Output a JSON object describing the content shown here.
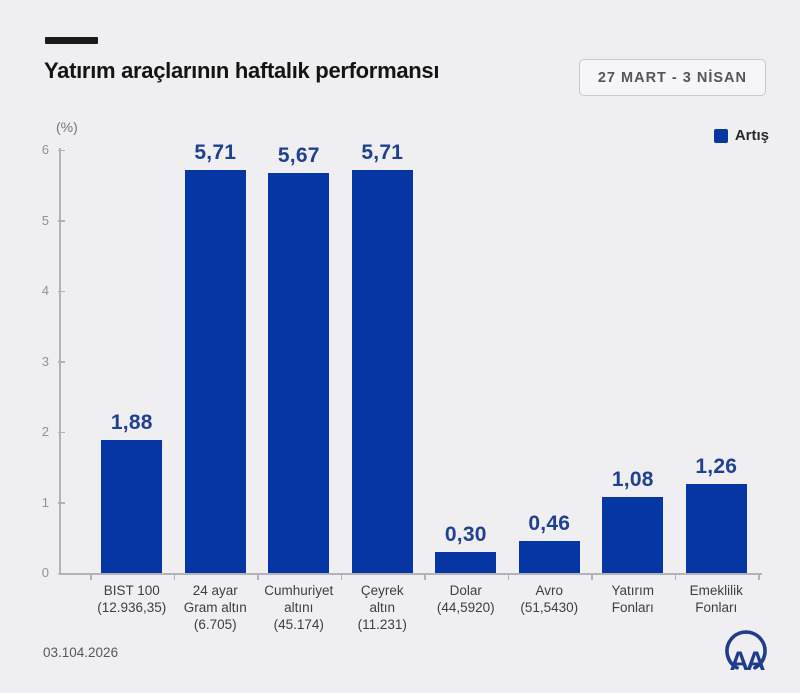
{
  "page": {
    "background": "#efeff1"
  },
  "header": {
    "title": "Yatırım araçlarının haftalık performansı",
    "date_badge": "27 MART - 3 NİSAN"
  },
  "legend": {
    "label": "Artış",
    "color": "#0635a4"
  },
  "axis": {
    "unit_label": "(%)"
  },
  "footer": {
    "date": "03.104.2026",
    "logo_text": "AA"
  },
  "chart_data": {
    "type": "bar",
    "title": "Yatırım araçlarının haftalık performansı",
    "period": "27 MART - 3 NİSAN",
    "ylabel": "(%)",
    "ylim": [
      0,
      6
    ],
    "yticks": [
      0,
      1,
      2,
      3,
      4,
      5,
      6
    ],
    "grid": false,
    "legend_position": "top-right",
    "categories": [
      "BIST 100 (12.936,35)",
      "24 ayar Gram altın (6.705)",
      "Cumhuriyet altını (45.174)",
      "Çeyrek altın (11.231)",
      "Dolar (44,5920)",
      "Avro (51,5430)",
      "Yatırım Fonları",
      "Emeklilik Fonları"
    ],
    "category_lines": [
      [
        "BIST 100",
        "(12.936,35)"
      ],
      [
        "24 ayar",
        "Gram altın",
        "(6.705)"
      ],
      [
        "Cumhuriyet",
        "altını",
        "(45.174)"
      ],
      [
        "Çeyrek",
        "altın",
        "(11.231)"
      ],
      [
        "Dolar",
        "(44,5920)"
      ],
      [
        "Avro",
        "(51,5430)"
      ],
      [
        "Yatırım",
        "Fonları"
      ],
      [
        "Emeklilik",
        "Fonları"
      ]
    ],
    "category_slugs": [
      "bist-100",
      "gram-altin-24-ayar",
      "cumhuriyet-altini",
      "ceyrek-altin",
      "dolar",
      "avro",
      "yatirim-fonlari",
      "emeklilik-fonlari"
    ],
    "series": [
      {
        "name": "Artış",
        "values": [
          1.88,
          5.71,
          5.67,
          5.71,
          0.3,
          0.46,
          1.08,
          1.26
        ]
      }
    ],
    "value_labels": [
      "5,71",
      "5,67",
      "5,71",
      "1,88",
      "0,30",
      "0,46",
      "1,08",
      "1,26"
    ],
    "value_labels_by_bar": [
      "1,88",
      "5,71",
      "5,67",
      "5,71",
      "0,30",
      "0,46",
      "1,08",
      "1,26"
    ],
    "bar_color": "#0635a4",
    "value_label_color": "#21408f"
  }
}
